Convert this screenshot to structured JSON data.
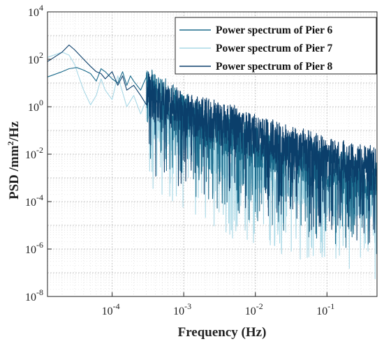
{
  "chart_data": {
    "type": "line",
    "xscale": "log",
    "yscale": "log",
    "xlim": [
      1.25e-05,
      0.5
    ],
    "ylim": [
      1e-08,
      10000
    ],
    "grid": true,
    "xlabel": "Frequency (Hz)",
    "ylabel_main": "PSD /mm",
    "ylabel_sup": "2",
    "ylabel_tail": "/Hz",
    "legend_position": "top-right",
    "x_ticks": [
      {
        "value": 0.0001,
        "base": "10",
        "exp": "-4"
      },
      {
        "value": 0.001,
        "base": "10",
        "exp": "-3"
      },
      {
        "value": 0.01,
        "base": "10",
        "exp": "-2"
      },
      {
        "value": 0.1,
        "base": "10",
        "exp": "-1"
      }
    ],
    "y_ticks": [
      {
        "value": 1e-08,
        "base": "10",
        "exp": "-8"
      },
      {
        "value": 1e-06,
        "base": "10",
        "exp": "-6"
      },
      {
        "value": 0.0001,
        "base": "10",
        "exp": "-4"
      },
      {
        "value": 0.01,
        "base": "10",
        "exp": "-2"
      },
      {
        "value": 1,
        "base": "10",
        "exp": "0"
      },
      {
        "value": 100,
        "base": "10",
        "exp": "2"
      },
      {
        "value": 10000,
        "base": "10",
        "exp": "4"
      }
    ],
    "series": [
      {
        "name": "Power spectrum of Pier 6",
        "color": "#1b6b8c",
        "points": [
          [
            1.25e-05,
            18
          ],
          [
            2e-05,
            30
          ],
          [
            2.5e-05,
            40
          ],
          [
            3.2e-05,
            45
          ],
          [
            4e-05,
            35
          ],
          [
            5e-05,
            25
          ],
          [
            6e-05,
            12
          ],
          [
            7e-05,
            40
          ],
          [
            8e-05,
            30
          ],
          [
            0.0001,
            15
          ],
          [
            0.00012,
            10
          ],
          [
            0.00014,
            30
          ],
          [
            0.00016,
            8
          ],
          [
            0.00018,
            20
          ],
          [
            0.0002,
            12
          ],
          [
            0.00025,
            5
          ],
          [
            0.0003,
            6
          ],
          [
            0.0004,
            3
          ],
          [
            0.0005,
            2
          ],
          [
            0.0007,
            1
          ],
          [
            0.001,
            0.4
          ],
          [
            0.002,
            0.15
          ],
          [
            0.003,
            0.08
          ],
          [
            0.005,
            0.05
          ],
          [
            0.007,
            0.03
          ],
          [
            0.01,
            0.02
          ],
          [
            0.02,
            0.01
          ],
          [
            0.03,
            0.006
          ],
          [
            0.05,
            0.004
          ],
          [
            0.07,
            0.003
          ],
          [
            0.1,
            0.002
          ],
          [
            0.2,
            0.0015
          ],
          [
            0.3,
            0.001
          ],
          [
            0.5,
            0.0008
          ]
        ]
      },
      {
        "name": "Power spectrum of Pier 7",
        "color": "#a8d8e6",
        "points": [
          [
            1.25e-05,
            120
          ],
          [
            2e-05,
            200
          ],
          [
            2.5e-05,
            150
          ],
          [
            3e-05,
            60
          ],
          [
            3.5e-05,
            15
          ],
          [
            4e-05,
            5
          ],
          [
            5e-05,
            1.2
          ],
          [
            6e-05,
            3
          ],
          [
            7e-05,
            15
          ],
          [
            8e-05,
            5
          ],
          [
            0.0001,
            2
          ],
          [
            0.00012,
            20
          ],
          [
            0.00014,
            4
          ],
          [
            0.00016,
            1
          ],
          [
            0.0002,
            3
          ],
          [
            0.00025,
            0.5
          ],
          [
            0.0003,
            1
          ],
          [
            0.0004,
            0.3
          ],
          [
            0.0005,
            0.2
          ],
          [
            0.0007,
            0.1
          ],
          [
            0.001,
            0.05
          ],
          [
            0.002,
            0.02
          ],
          [
            0.003,
            0.008
          ],
          [
            0.005,
            0.004
          ],
          [
            0.007,
            0.003
          ],
          [
            0.01,
            0.002
          ],
          [
            0.02,
            0.001
          ],
          [
            0.03,
            0.0007
          ],
          [
            0.05,
            0.0004
          ],
          [
            0.07,
            0.0003
          ],
          [
            0.1,
            0.0002
          ],
          [
            0.2,
            0.00015
          ],
          [
            0.3,
            0.0001
          ],
          [
            0.5,
            8e-05
          ]
        ]
      },
      {
        "name": "Power spectrum of Pier 8",
        "color": "#0b3f6b",
        "points": [
          [
            1.25e-05,
            80
          ],
          [
            2e-05,
            200
          ],
          [
            2.5e-05,
            400
          ],
          [
            3e-05,
            250
          ],
          [
            4e-05,
            100
          ],
          [
            5e-05,
            50
          ],
          [
            6e-05,
            30
          ],
          [
            7e-05,
            25
          ],
          [
            8e-05,
            15
          ],
          [
            0.0001,
            30
          ],
          [
            0.00012,
            8
          ],
          [
            0.00014,
            20
          ],
          [
            0.00016,
            5
          ],
          [
            0.0002,
            8
          ],
          [
            0.00025,
            3
          ],
          [
            0.0003,
            4
          ],
          [
            0.0004,
            1.5
          ],
          [
            0.0005,
            1.2
          ],
          [
            0.0007,
            0.8
          ],
          [
            0.001,
            0.5
          ],
          [
            0.002,
            0.3
          ],
          [
            0.003,
            0.2
          ],
          [
            0.005,
            0.12
          ],
          [
            0.007,
            0.08
          ],
          [
            0.01,
            0.05
          ],
          [
            0.02,
            0.03
          ],
          [
            0.03,
            0.02
          ],
          [
            0.05,
            0.012
          ],
          [
            0.07,
            0.008
          ],
          [
            0.1,
            0.006
          ],
          [
            0.2,
            0.004
          ],
          [
            0.3,
            0.003
          ],
          [
            0.5,
            0.002
          ]
        ]
      }
    ]
  }
}
